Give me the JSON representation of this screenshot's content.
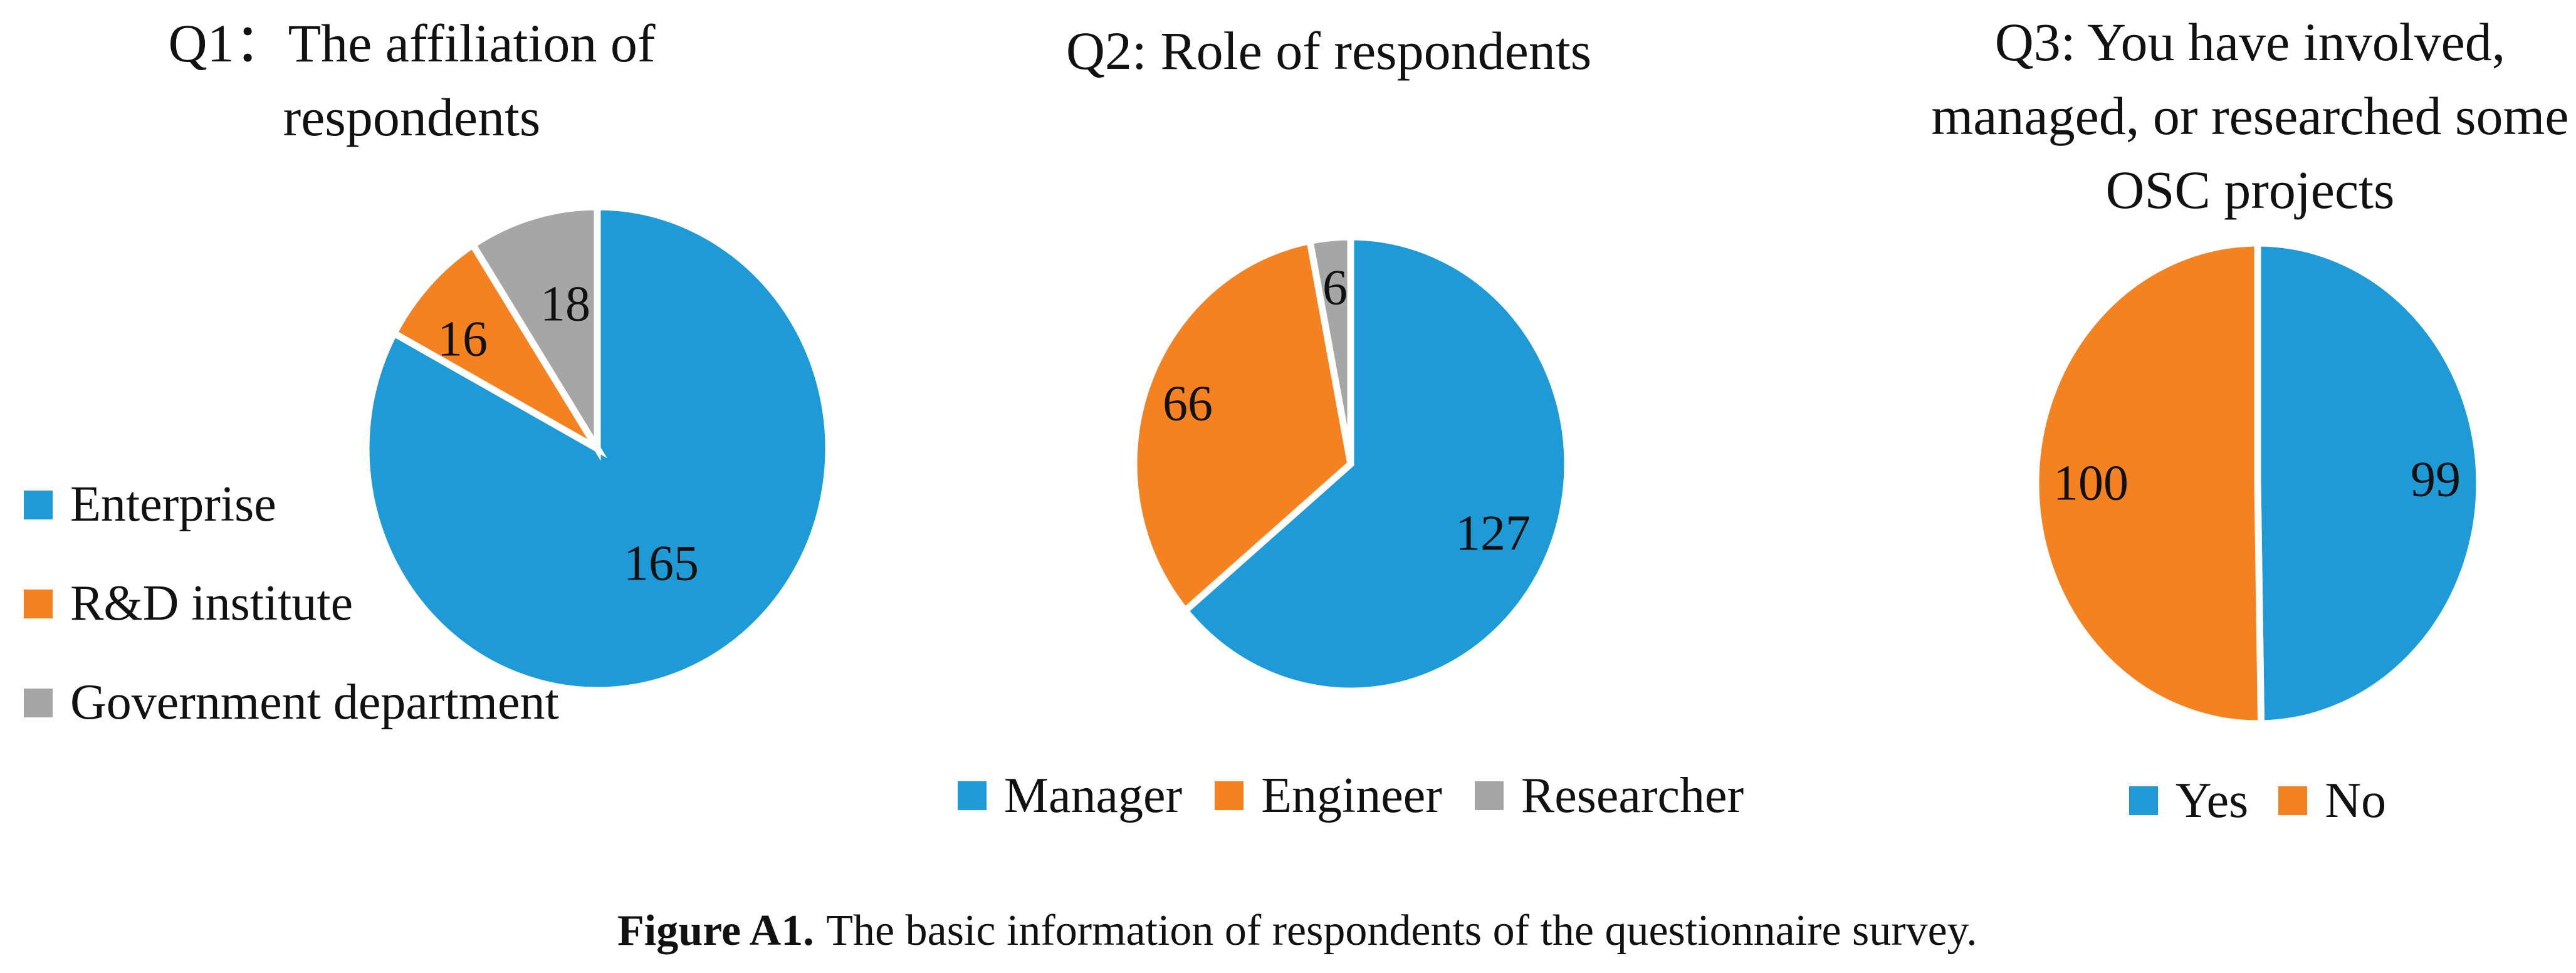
{
  "figure": {
    "caption_label": "Figure A1.",
    "caption_text": "The basic information of respondents of the questionnaire survey."
  },
  "colors": {
    "blue": "#1E9BD7",
    "orange": "#F58220",
    "gray": "#A6A6A6",
    "text": "#111111",
    "background": "#FFFFFF"
  },
  "chart_data": [
    {
      "type": "pie",
      "title": "Q1：The affiliation of\nrespondents",
      "categories": [
        "Enterprise",
        "R&D institute",
        "Government department"
      ],
      "values": [
        165,
        16,
        18
      ],
      "colors": [
        "#1E9BD7",
        "#F58220",
        "#A6A6A6"
      ],
      "data_labels": "values",
      "legend_position": "left",
      "start_angle_deg": 0,
      "direction": "clockwise"
    },
    {
      "type": "pie",
      "title": "Q2: Role of respondents",
      "categories": [
        "Manager",
        "Engineer",
        "Researcher"
      ],
      "values": [
        127,
        66,
        6
      ],
      "colors": [
        "#1E9BD7",
        "#F58220",
        "#A6A6A6"
      ],
      "data_labels": "values",
      "legend_position": "bottom",
      "start_angle_deg": 0,
      "direction": "clockwise"
    },
    {
      "type": "pie",
      "title": "Q3: You have involved,\nmanaged, or researched some\nOSC projects",
      "categories": [
        "Yes",
        "No"
      ],
      "values": [
        99,
        100
      ],
      "colors": [
        "#1E9BD7",
        "#F58220"
      ],
      "data_labels": "values",
      "legend_position": "bottom",
      "start_angle_deg": 0,
      "direction": "clockwise"
    }
  ]
}
